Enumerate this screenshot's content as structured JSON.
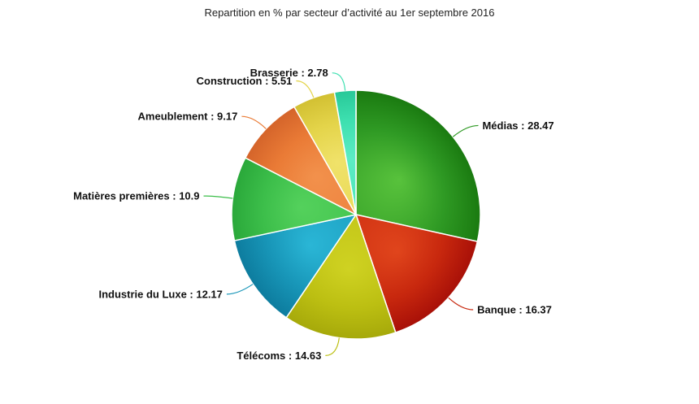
{
  "chart_data": {
    "type": "pie",
    "title": "Repartition en % par secteur d’activité au 1er septembre 2016",
    "slices": [
      {
        "name": "Médias",
        "value": 28.47,
        "label": "Médias : 28.47",
        "color": "#2f9a24",
        "light": "#58c23c",
        "dark": "#1a7a10"
      },
      {
        "name": "Banque",
        "value": 16.37,
        "label": "Banque : 16.37",
        "color": "#c8280e",
        "light": "#e0451c",
        "dark": "#a81008"
      },
      {
        "name": "Télécoms",
        "value": 14.63,
        "label": "Télécoms : 14.63",
        "color": "#bcbf12",
        "light": "#cfd222",
        "dark": "#a6a90a"
      },
      {
        "name": "Industrie du Luxe",
        "value": 12.17,
        "label": "Industrie du Luxe : 12.17",
        "color": "#1896b8",
        "light": "#2ab6d6",
        "dark": "#0d7c9e"
      },
      {
        "name": "Matières premières",
        "value": 10.9,
        "label": "Matières premières : 10.9",
        "color": "#3cbe4a",
        "light": "#54d15c",
        "dark": "#2aa83a"
      },
      {
        "name": "Ameublement",
        "value": 9.17,
        "label": "Ameublement : 9.17",
        "color": "#ea7b36",
        "light": "#f2914c",
        "dark": "#d4642a"
      },
      {
        "name": "Construction",
        "value": 5.51,
        "label": "Construction : 5.51",
        "color": "#e4d44a",
        "light": "#f0e26a",
        "dark": "#d2c032"
      },
      {
        "name": "Brasserie",
        "value": 2.78,
        "label": "Brasserie : 2.78",
        "color": "#3ee0b0",
        "light": "#5cecc4",
        "dark": "#28c898"
      }
    ]
  }
}
